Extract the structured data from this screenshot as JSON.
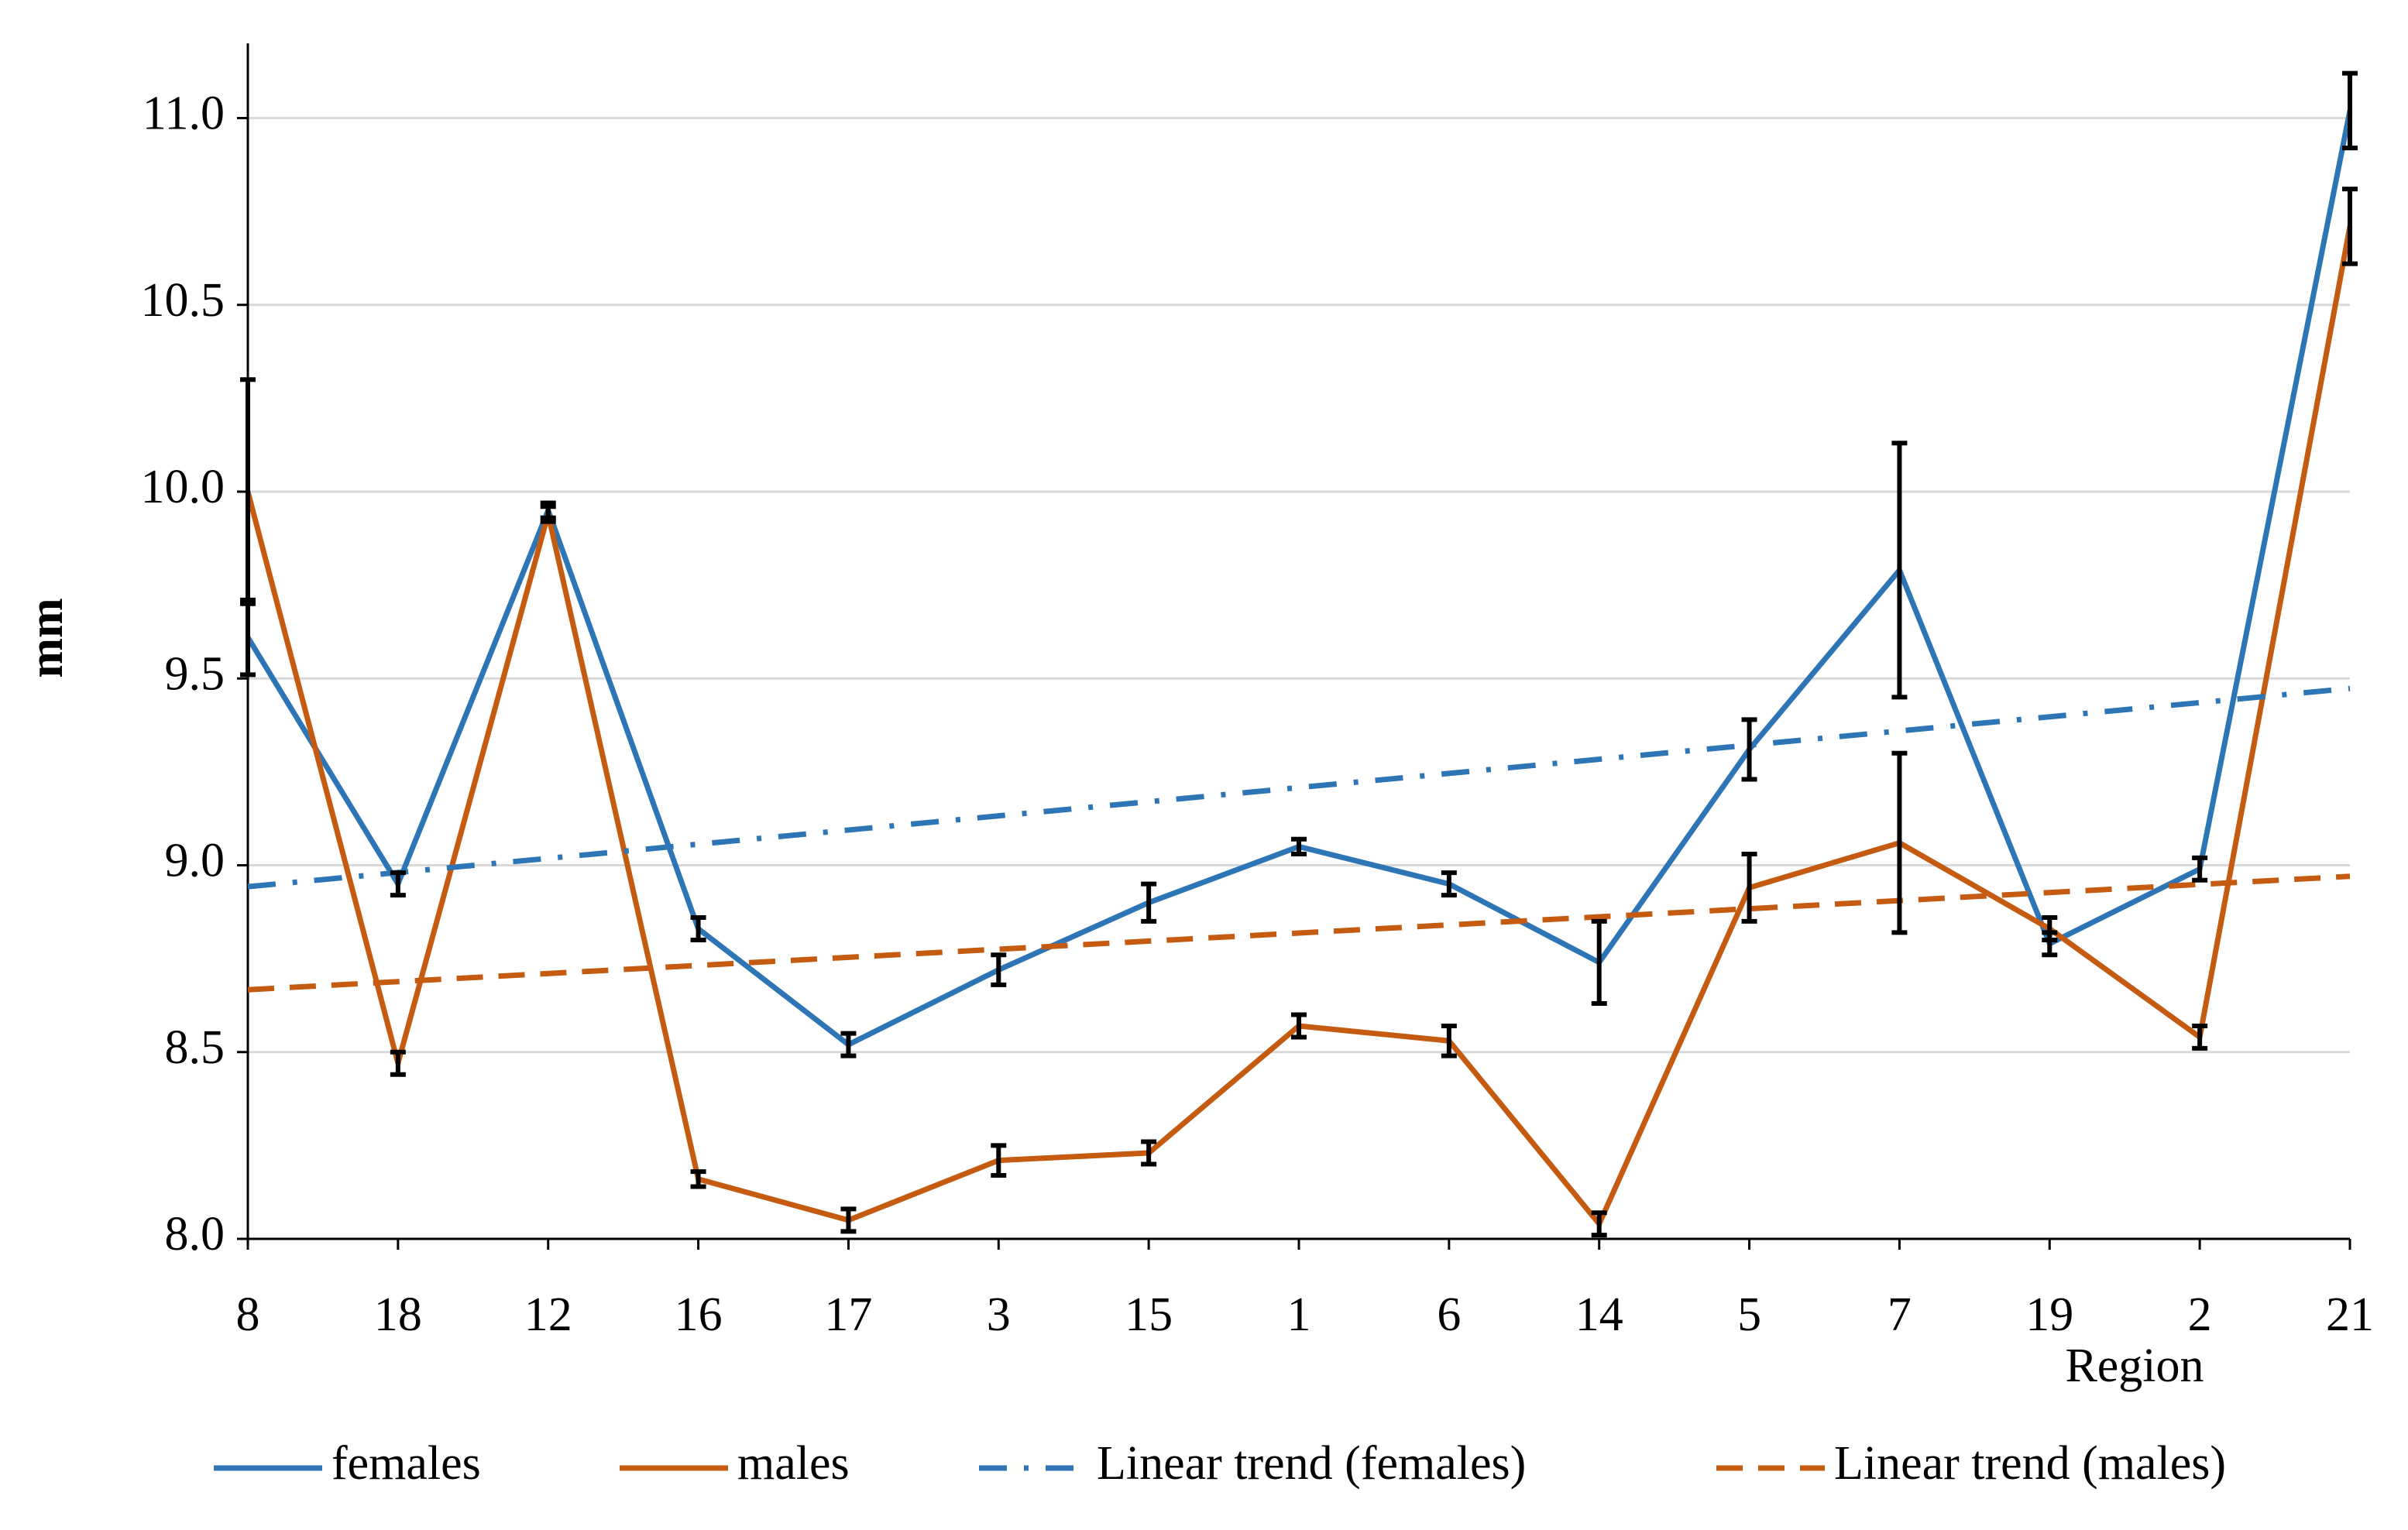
{
  "chart_data": {
    "type": "line",
    "x_label": "Region",
    "y_label": "mm",
    "categories": [
      "8",
      "18",
      "12",
      "16",
      "17",
      "3",
      "15",
      "1",
      "6",
      "14",
      "5",
      "7",
      "19",
      "2",
      "21"
    ],
    "ylim": [
      8,
      11.2
    ],
    "yticks": [
      {
        "value": 8,
        "label": "8.0"
      },
      {
        "value": 8.5,
        "label": "8.5"
      },
      {
        "value": 9,
        "label": "9.0"
      },
      {
        "value": 9.5,
        "label": "9.5"
      },
      {
        "value": 10,
        "label": "10.0"
      },
      {
        "value": 10.5,
        "label": "10.5"
      },
      {
        "value": 11,
        "label": "11.0"
      }
    ],
    "grid": true,
    "series": [
      {
        "name": "females",
        "color": "#2e75b6",
        "values": [
          9.61,
          8.95,
          9.95,
          8.83,
          8.52,
          8.72,
          8.9,
          9.05,
          8.95,
          8.74,
          9.31,
          9.79,
          8.79,
          8.99,
          11.02
        ],
        "errors": [
          0.1,
          0.03,
          0.02,
          0.03,
          0.03,
          0.04,
          0.05,
          0.02,
          0.03,
          0.11,
          0.08,
          0.34,
          0.03,
          0.03,
          0.1
        ]
      },
      {
        "name": "males",
        "color": "#c55a11",
        "values": [
          10.0,
          8.47,
          9.94,
          8.16,
          8.05,
          8.21,
          8.23,
          8.57,
          8.53,
          8.04,
          8.94,
          9.06,
          8.83,
          8.54,
          10.71
        ],
        "errors": [
          0.3,
          0.03,
          0.02,
          0.02,
          0.03,
          0.04,
          0.03,
          0.03,
          0.04,
          0.03,
          0.09,
          0.24,
          0.03,
          0.03,
          0.1
        ]
      },
      {
        "name": "Linear trend (females)",
        "color": "#2e75b6",
        "trend_of": 0,
        "dash": "dash-dot"
      },
      {
        "name": "Linear trend (males)",
        "color": "#c55a11",
        "trend_of": 1,
        "dash": "dash"
      }
    ]
  }
}
